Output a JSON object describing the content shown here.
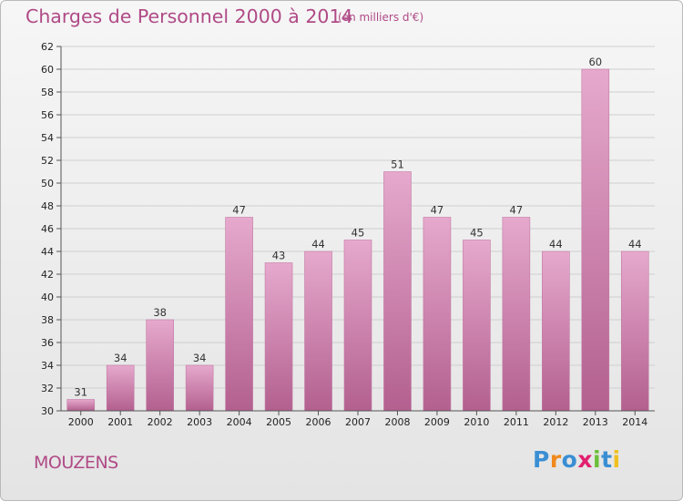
{
  "title": "Charges de Personnel 2000 à 2014",
  "subtitle": "(en milliers d'€)",
  "commune": "MOUZENS",
  "logo": {
    "text": "Proxiti",
    "letters": [
      "P",
      "r",
      "o",
      "x",
      "i",
      "t",
      "i"
    ],
    "colors": [
      "#3a8fd4",
      "#f08a1e",
      "#3a8fd4",
      "#e2206f",
      "#6cbf3a",
      "#3a8fd4",
      "#f0c020"
    ]
  },
  "colors": {
    "bar_light": "#e6a9cd",
    "bar_dark": "#b3608f",
    "accent": "#b04a86"
  },
  "chart_data": {
    "type": "bar",
    "categories": [
      "2000",
      "2001",
      "2002",
      "2003",
      "2004",
      "2005",
      "2006",
      "2007",
      "2008",
      "2009",
      "2010",
      "2011",
      "2012",
      "2013",
      "2014"
    ],
    "values": [
      31,
      34,
      38,
      34,
      47,
      43,
      44,
      45,
      51,
      47,
      45,
      47,
      44,
      60,
      44
    ],
    "ylim": [
      30,
      62
    ],
    "yticks": [
      30,
      32,
      34,
      36,
      38,
      40,
      42,
      44,
      46,
      48,
      50,
      52,
      54,
      56,
      58,
      60,
      62
    ],
    "grid": true,
    "xlabel": "",
    "ylabel": ""
  }
}
